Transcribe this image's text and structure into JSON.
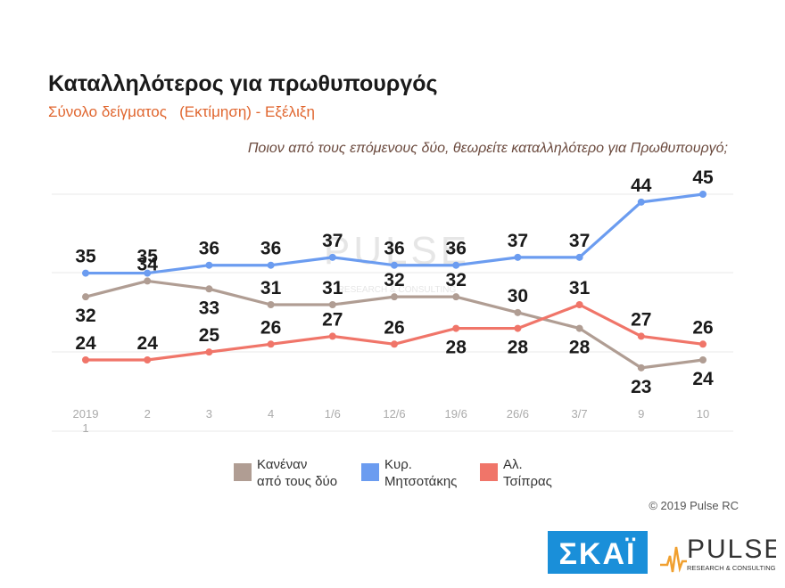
{
  "title": "Καταλληλότερος για πρωθυπουργός",
  "subtitle": "Σύνολο δείγματος   (Εκτίμηση) - Εξέλιξη",
  "question": "Ποιον από τους επόμενους δύο, θεωρείτε καταλληλότερο για Πρωθυπουργό;",
  "copyright": "© 2019 Pulse RC",
  "logos": {
    "skai": "ΣΚΑΪ",
    "pulse": "PULSE",
    "pulse_sub": "RESEARCH & CONSULTING"
  },
  "watermark": {
    "main": "PULSE",
    "sub": "RESEARCH & CONSULTING"
  },
  "chart_data": {
    "type": "line",
    "categories": [
      "2019\n1",
      "2",
      "3",
      "4",
      "1/6",
      "12/6",
      "19/6",
      "26/6",
      "3/7",
      "9",
      "10"
    ],
    "series": [
      {
        "name": "Κανέναν\nαπό τους δύο",
        "color": "#b09d93",
        "values": [
          32,
          34,
          33,
          31,
          31,
          32,
          32,
          30,
          28,
          23,
          24
        ]
      },
      {
        "name": "Κυρ.\nΜητσοτάκης",
        "color": "#6b9cf0",
        "values": [
          35,
          35,
          36,
          36,
          37,
          36,
          36,
          37,
          37,
          44,
          45
        ]
      },
      {
        "name": "Αλ.\nΤσίπρας",
        "color": "#f07569",
        "values": [
          24,
          24,
          25,
          26,
          27,
          26,
          28,
          28,
          31,
          27,
          26
        ]
      }
    ],
    "ylim": [
      15,
      47
    ],
    "grid": true,
    "legend": "bottom",
    "xlabel": "",
    "ylabel": ""
  }
}
